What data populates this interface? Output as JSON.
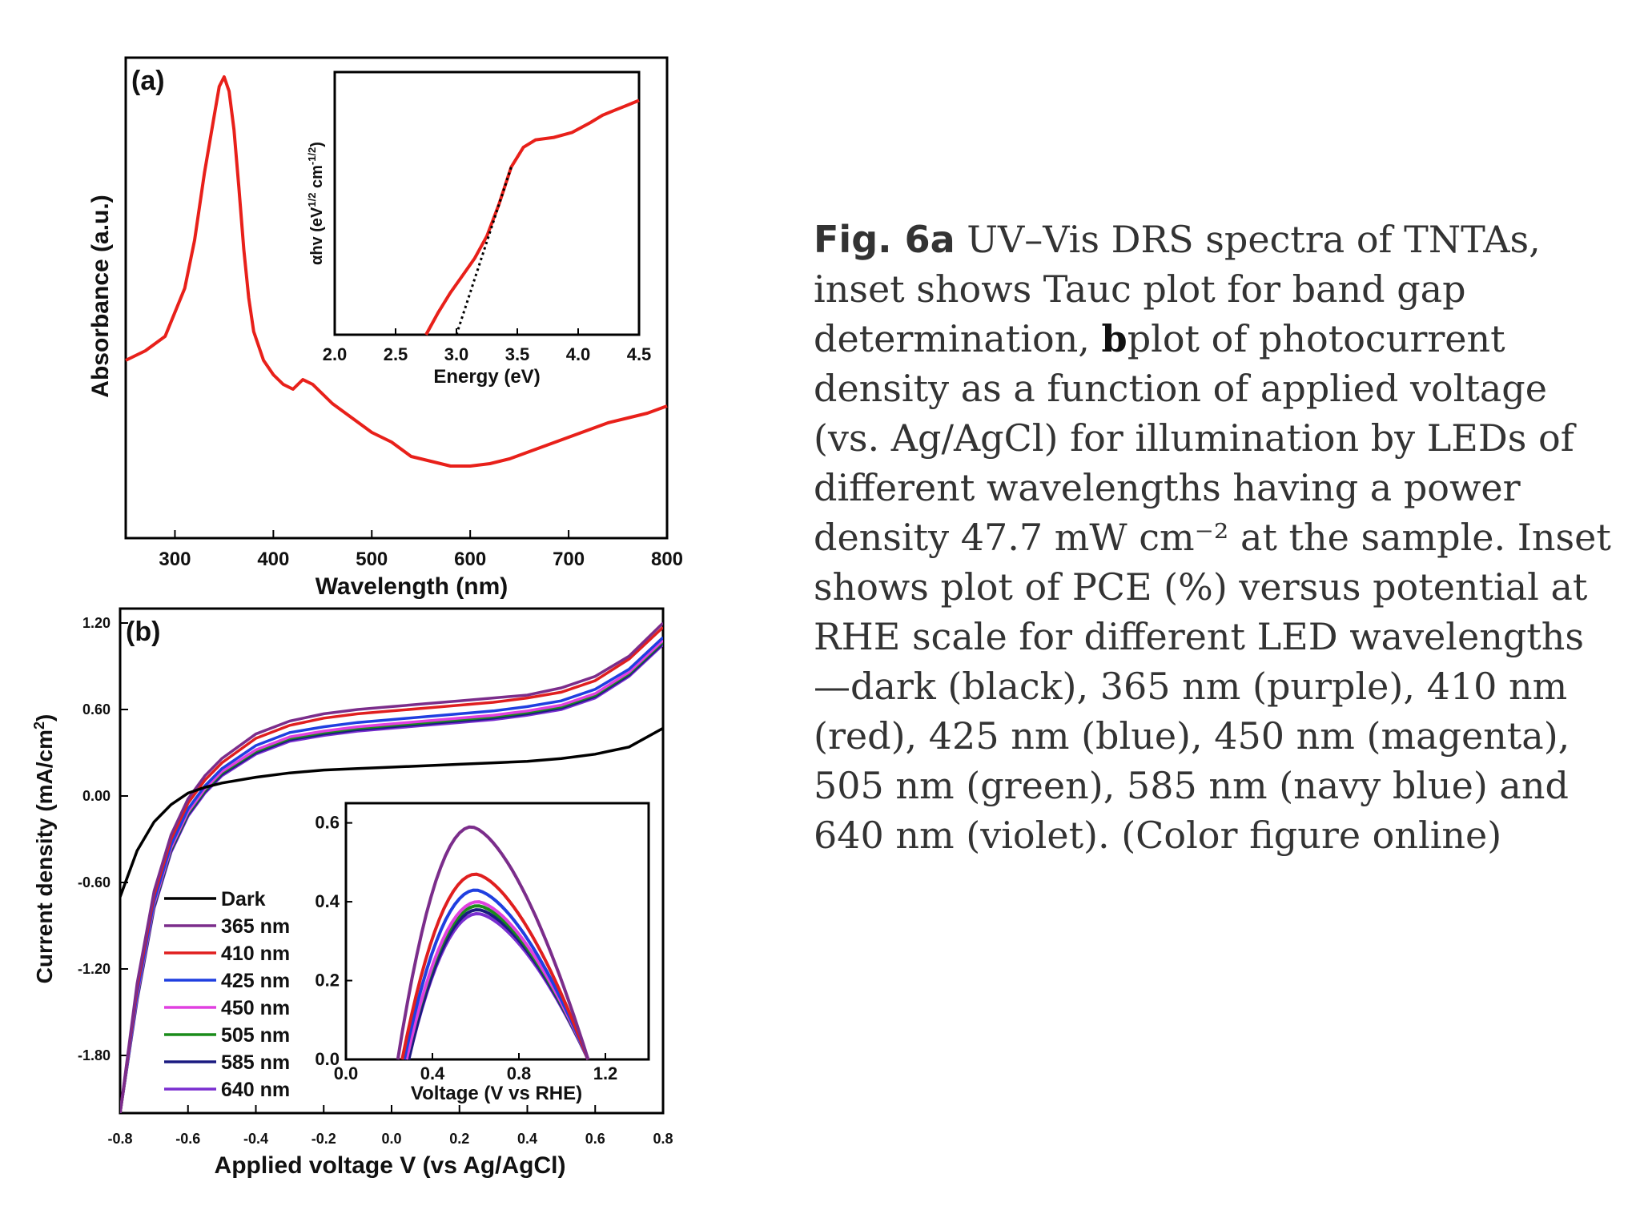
{
  "caption": {
    "fig_label": "Fig. 6a",
    "text_a": "UV–Vis DRS spectra of TNTAs, inset shows Tauc plot for band gap determination,",
    "b_label": "b",
    "text_b": "plot of photocurrent density as a function of applied voltage (vs. Ag/AgCl) for illumination by LEDs of different wavelengths having a power density 47.7 mW cm⁻² at the sample. Inset shows plot of PCE (%) versus potential at RHE scale for different LED wavelengths—dark (black), 365 nm (purple), 410 nm (red), 425 nm (blue), 450 nm (magenta), 505 nm (green), 585 nm (navy blue) and 640 nm (violet). (Color figure online)"
  },
  "colors": {
    "Dark": "#000000",
    "365 nm": "#7b2d8b",
    "410 nm": "#e01f1f",
    "425 nm": "#1f3fe0",
    "450 nm": "#e040e0",
    "505 nm": "#1a8c1a",
    "585 nm": "#1a1a80",
    "640 nm": "#7a2fd0",
    "spectrum": "#e8201a"
  },
  "chart_data": [
    {
      "id": "a-main",
      "panel_label": "(a)",
      "type": "line",
      "title": "",
      "xlabel": "Wavelength (nm)",
      "ylabel": "Absorbance (a.u.)",
      "xlim": [
        250,
        800
      ],
      "ylim": [
        0,
        1
      ],
      "xticks": [
        "300",
        "400",
        "500",
        "600",
        "700",
        "800"
      ],
      "series": [
        {
          "name": "TNTAs",
          "x": [
            250,
            270,
            290,
            310,
            320,
            330,
            340,
            345,
            350,
            355,
            360,
            365,
            370,
            375,
            380,
            390,
            400,
            410,
            420,
            430,
            440,
            450,
            460,
            480,
            500,
            520,
            540,
            560,
            580,
            600,
            620,
            640,
            660,
            680,
            700,
            720,
            740,
            760,
            780,
            800
          ],
          "y": [
            0.37,
            0.39,
            0.42,
            0.52,
            0.62,
            0.76,
            0.88,
            0.94,
            0.96,
            0.93,
            0.85,
            0.73,
            0.6,
            0.5,
            0.43,
            0.37,
            0.34,
            0.32,
            0.31,
            0.33,
            0.32,
            0.3,
            0.28,
            0.25,
            0.22,
            0.2,
            0.17,
            0.16,
            0.15,
            0.15,
            0.155,
            0.165,
            0.18,
            0.195,
            0.21,
            0.225,
            0.24,
            0.25,
            0.26,
            0.275
          ]
        }
      ]
    },
    {
      "id": "a-inset",
      "type": "line",
      "title": "",
      "xlabel": "Energy (eV)",
      "ylabel": "αhv (eV^1/2 cm^-1/2)",
      "xlim": [
        2.0,
        4.5
      ],
      "ylim": [
        0,
        1
      ],
      "xticks": [
        "2.0",
        "2.5",
        "3.0",
        "3.5",
        "4.0",
        "4.5"
      ],
      "series": [
        {
          "name": "Tauc plot",
          "x": [
            2.75,
            2.85,
            2.95,
            3.05,
            3.15,
            3.25,
            3.35,
            3.45,
            3.55,
            3.65,
            3.8,
            3.95,
            4.1,
            4.2,
            4.3,
            4.4,
            4.5
          ],
          "y": [
            0.0,
            0.09,
            0.17,
            0.24,
            0.31,
            0.4,
            0.53,
            0.68,
            0.76,
            0.79,
            0.8,
            0.82,
            0.86,
            0.89,
            0.91,
            0.93,
            0.95
          ]
        },
        {
          "name": "Linear extrapolation",
          "x": [
            3.0,
            3.45
          ],
          "y": [
            0.0,
            0.68
          ]
        }
      ]
    },
    {
      "id": "b-main",
      "panel_label": "(b)",
      "type": "line",
      "title": "",
      "xlabel": "Applied voltage V (vs Ag/AgCl)",
      "ylabel": "Current density (mA/cm²)",
      "xlim": [
        -0.8,
        0.8
      ],
      "ylim": [
        -2.2,
        1.3
      ],
      "xticks": [
        "-0.8",
        "-0.6",
        "-0.4",
        "-0.2",
        "0.0",
        "0.2",
        "0.4",
        "0.6",
        "0.8"
      ],
      "yticks": [
        "1.20",
        "0.60",
        "0.00",
        "-0.60",
        "-1.20",
        "-1.80"
      ],
      "x": [
        -0.8,
        -0.75,
        -0.7,
        -0.65,
        -0.6,
        -0.55,
        -0.5,
        -0.4,
        -0.3,
        -0.2,
        -0.1,
        0.0,
        0.1,
        0.2,
        0.3,
        0.4,
        0.5,
        0.6,
        0.7,
        0.8
      ],
      "series": [
        {
          "name": "Dark",
          "values": [
            -0.7,
            -0.38,
            -0.18,
            -0.06,
            0.02,
            0.06,
            0.09,
            0.13,
            0.16,
            0.18,
            0.19,
            0.2,
            0.21,
            0.22,
            0.23,
            0.24,
            0.26,
            0.29,
            0.34,
            0.47
          ]
        },
        {
          "name": "365 nm",
          "values": [
            -2.2,
            -1.3,
            -0.66,
            -0.27,
            -0.02,
            0.14,
            0.26,
            0.43,
            0.52,
            0.57,
            0.6,
            0.62,
            0.64,
            0.66,
            0.68,
            0.7,
            0.75,
            0.83,
            0.97,
            1.2
          ]
        },
        {
          "name": "410 nm",
          "values": [
            -2.2,
            -1.33,
            -0.69,
            -0.3,
            -0.05,
            0.11,
            0.23,
            0.4,
            0.49,
            0.54,
            0.57,
            0.59,
            0.61,
            0.63,
            0.65,
            0.68,
            0.72,
            0.8,
            0.95,
            1.17
          ]
        },
        {
          "name": "425 nm",
          "values": [
            -2.2,
            -1.37,
            -0.73,
            -0.34,
            -0.09,
            0.07,
            0.19,
            0.35,
            0.44,
            0.48,
            0.51,
            0.53,
            0.55,
            0.57,
            0.59,
            0.62,
            0.66,
            0.74,
            0.88,
            1.1
          ]
        },
        {
          "name": "450 nm",
          "values": [
            -2.2,
            -1.39,
            -0.75,
            -0.36,
            -0.11,
            0.05,
            0.17,
            0.32,
            0.41,
            0.45,
            0.48,
            0.5,
            0.52,
            0.54,
            0.56,
            0.59,
            0.63,
            0.71,
            0.86,
            1.08
          ]
        },
        {
          "name": "505 nm",
          "values": [
            -2.2,
            -1.4,
            -0.76,
            -0.37,
            -0.12,
            0.04,
            0.16,
            0.31,
            0.4,
            0.44,
            0.47,
            0.49,
            0.51,
            0.53,
            0.55,
            0.58,
            0.62,
            0.7,
            0.85,
            1.07
          ]
        },
        {
          "name": "585 nm",
          "values": [
            -2.2,
            -1.41,
            -0.77,
            -0.38,
            -0.13,
            0.03,
            0.15,
            0.3,
            0.39,
            0.43,
            0.46,
            0.48,
            0.5,
            0.52,
            0.54,
            0.57,
            0.61,
            0.69,
            0.84,
            1.06
          ]
        },
        {
          "name": "640 nm",
          "values": [
            -2.2,
            -1.42,
            -0.78,
            -0.39,
            -0.14,
            0.02,
            0.14,
            0.29,
            0.38,
            0.42,
            0.45,
            0.47,
            0.49,
            0.51,
            0.53,
            0.56,
            0.6,
            0.68,
            0.83,
            1.05
          ]
        }
      ],
      "legend": [
        "Dark",
        "365 nm",
        "410 nm",
        "425 nm",
        "450 nm",
        "505 nm",
        "585 nm",
        "640 nm"
      ],
      "legend_position": "bottom-left"
    },
    {
      "id": "b-inset",
      "type": "line",
      "title": "",
      "xlabel": "Voltage (V vs RHE)",
      "ylabel": "PCE (%)",
      "xlim": [
        0.0,
        1.4
      ],
      "ylim": [
        0.0,
        0.65
      ],
      "xticks": [
        "0.0",
        "0.4",
        "0.8",
        "1.2"
      ],
      "yticks": [
        "0.6",
        "0.4",
        "0.2",
        "0.0"
      ],
      "series": [
        {
          "name": "365 nm",
          "v0": 0.24,
          "peak_v": 0.58,
          "peak": 0.59,
          "v1": 1.12
        },
        {
          "name": "410 nm",
          "v0": 0.26,
          "peak_v": 0.6,
          "peak": 0.47,
          "v1": 1.12
        },
        {
          "name": "425 nm",
          "v0": 0.27,
          "peak_v": 0.6,
          "peak": 0.43,
          "v1": 1.12
        },
        {
          "name": "450 nm",
          "v0": 0.28,
          "peak_v": 0.61,
          "peak": 0.4,
          "v1": 1.12
        },
        {
          "name": "505 nm",
          "v0": 0.28,
          "peak_v": 0.61,
          "peak": 0.39,
          "v1": 1.12
        },
        {
          "name": "585 nm",
          "v0": 0.29,
          "peak_v": 0.61,
          "peak": 0.38,
          "v1": 1.12
        },
        {
          "name": "640 nm",
          "v0": 0.29,
          "peak_v": 0.61,
          "peak": 0.37,
          "v1": 1.12
        }
      ]
    }
  ]
}
